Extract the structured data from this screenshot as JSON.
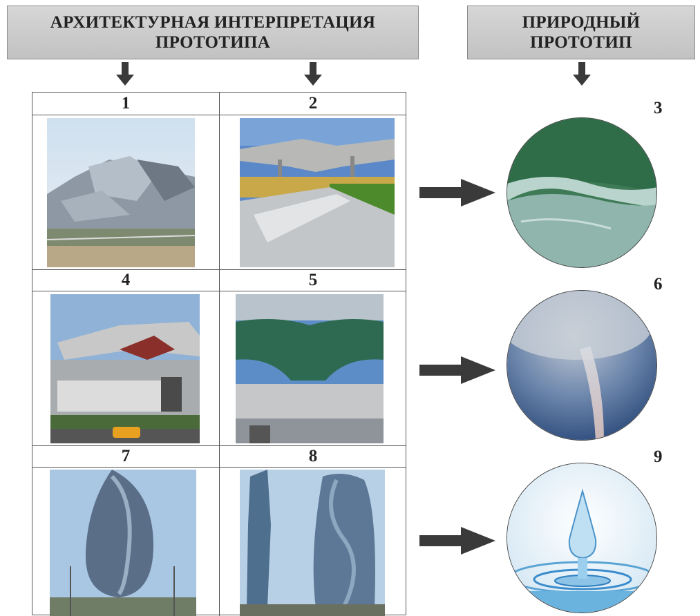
{
  "header_left": {
    "line1": "АРХИТЕКТУРНАЯ ИНТЕРПРЕТАЦИЯ",
    "line2": "ПРОТОТИПА"
  },
  "header_right": {
    "line1": "ПРИРОДНЫЙ",
    "line2": "ПРОТОТИП"
  },
  "cells": {
    "n1": "1",
    "n2": "2",
    "n3": "3",
    "n4": "4",
    "n5": "5",
    "n6": "6",
    "n7": "7",
    "n8": "8",
    "n9": "9"
  },
  "colors": {
    "header_bg": "#c9c9c9",
    "arrow": "#3a3a3a",
    "border": "#555555"
  }
}
